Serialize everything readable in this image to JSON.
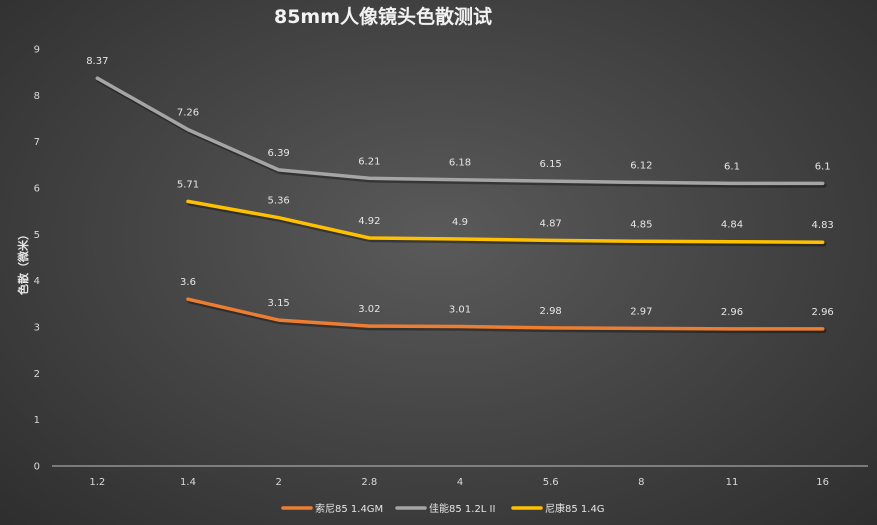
{
  "chart_data": {
    "type": "line",
    "title": "85mm人像镜头色散测试",
    "xlabel": "",
    "ylabel": "色散（微米）",
    "ylim": [
      0,
      9
    ],
    "yticks": [
      "0",
      "1",
      "2",
      "3",
      "4",
      "5",
      "6",
      "7",
      "8",
      "9"
    ],
    "categories": [
      "1.2",
      "1.4",
      "2",
      "2.8",
      "4",
      "5.6",
      "8",
      "11",
      "16"
    ],
    "grid": false,
    "legend": "bottom",
    "series": [
      {
        "name": "索尼85 1.4GM",
        "color": "#ed7d31",
        "values": [
          null,
          3.6,
          3.15,
          3.02,
          3.01,
          2.98,
          2.97,
          2.96,
          2.96
        ],
        "labels": [
          "",
          "3.6",
          "3.15",
          "3.02",
          "3.01",
          "2.98",
          "2.97",
          "2.96",
          "2.96"
        ]
      },
      {
        "name": "佳能85 1.2L II",
        "color": "#a5a5a5",
        "values": [
          8.37,
          7.26,
          6.39,
          6.21,
          6.18,
          6.15,
          6.12,
          6.1,
          6.1
        ],
        "labels": [
          "8.37",
          "7.26",
          "6.39",
          "6.21",
          "6.18",
          "6.15",
          "6.12",
          "6.1",
          "6.1"
        ]
      },
      {
        "name": "尼康85 1.4G",
        "color": "#ffc000",
        "values": [
          null,
          5.71,
          5.36,
          4.92,
          4.9,
          4.87,
          4.85,
          4.84,
          4.83
        ],
        "labels": [
          "",
          "5.71",
          "5.36",
          "4.92",
          "4.9",
          "4.87",
          "4.85",
          "4.84",
          "4.83"
        ]
      }
    ]
  }
}
